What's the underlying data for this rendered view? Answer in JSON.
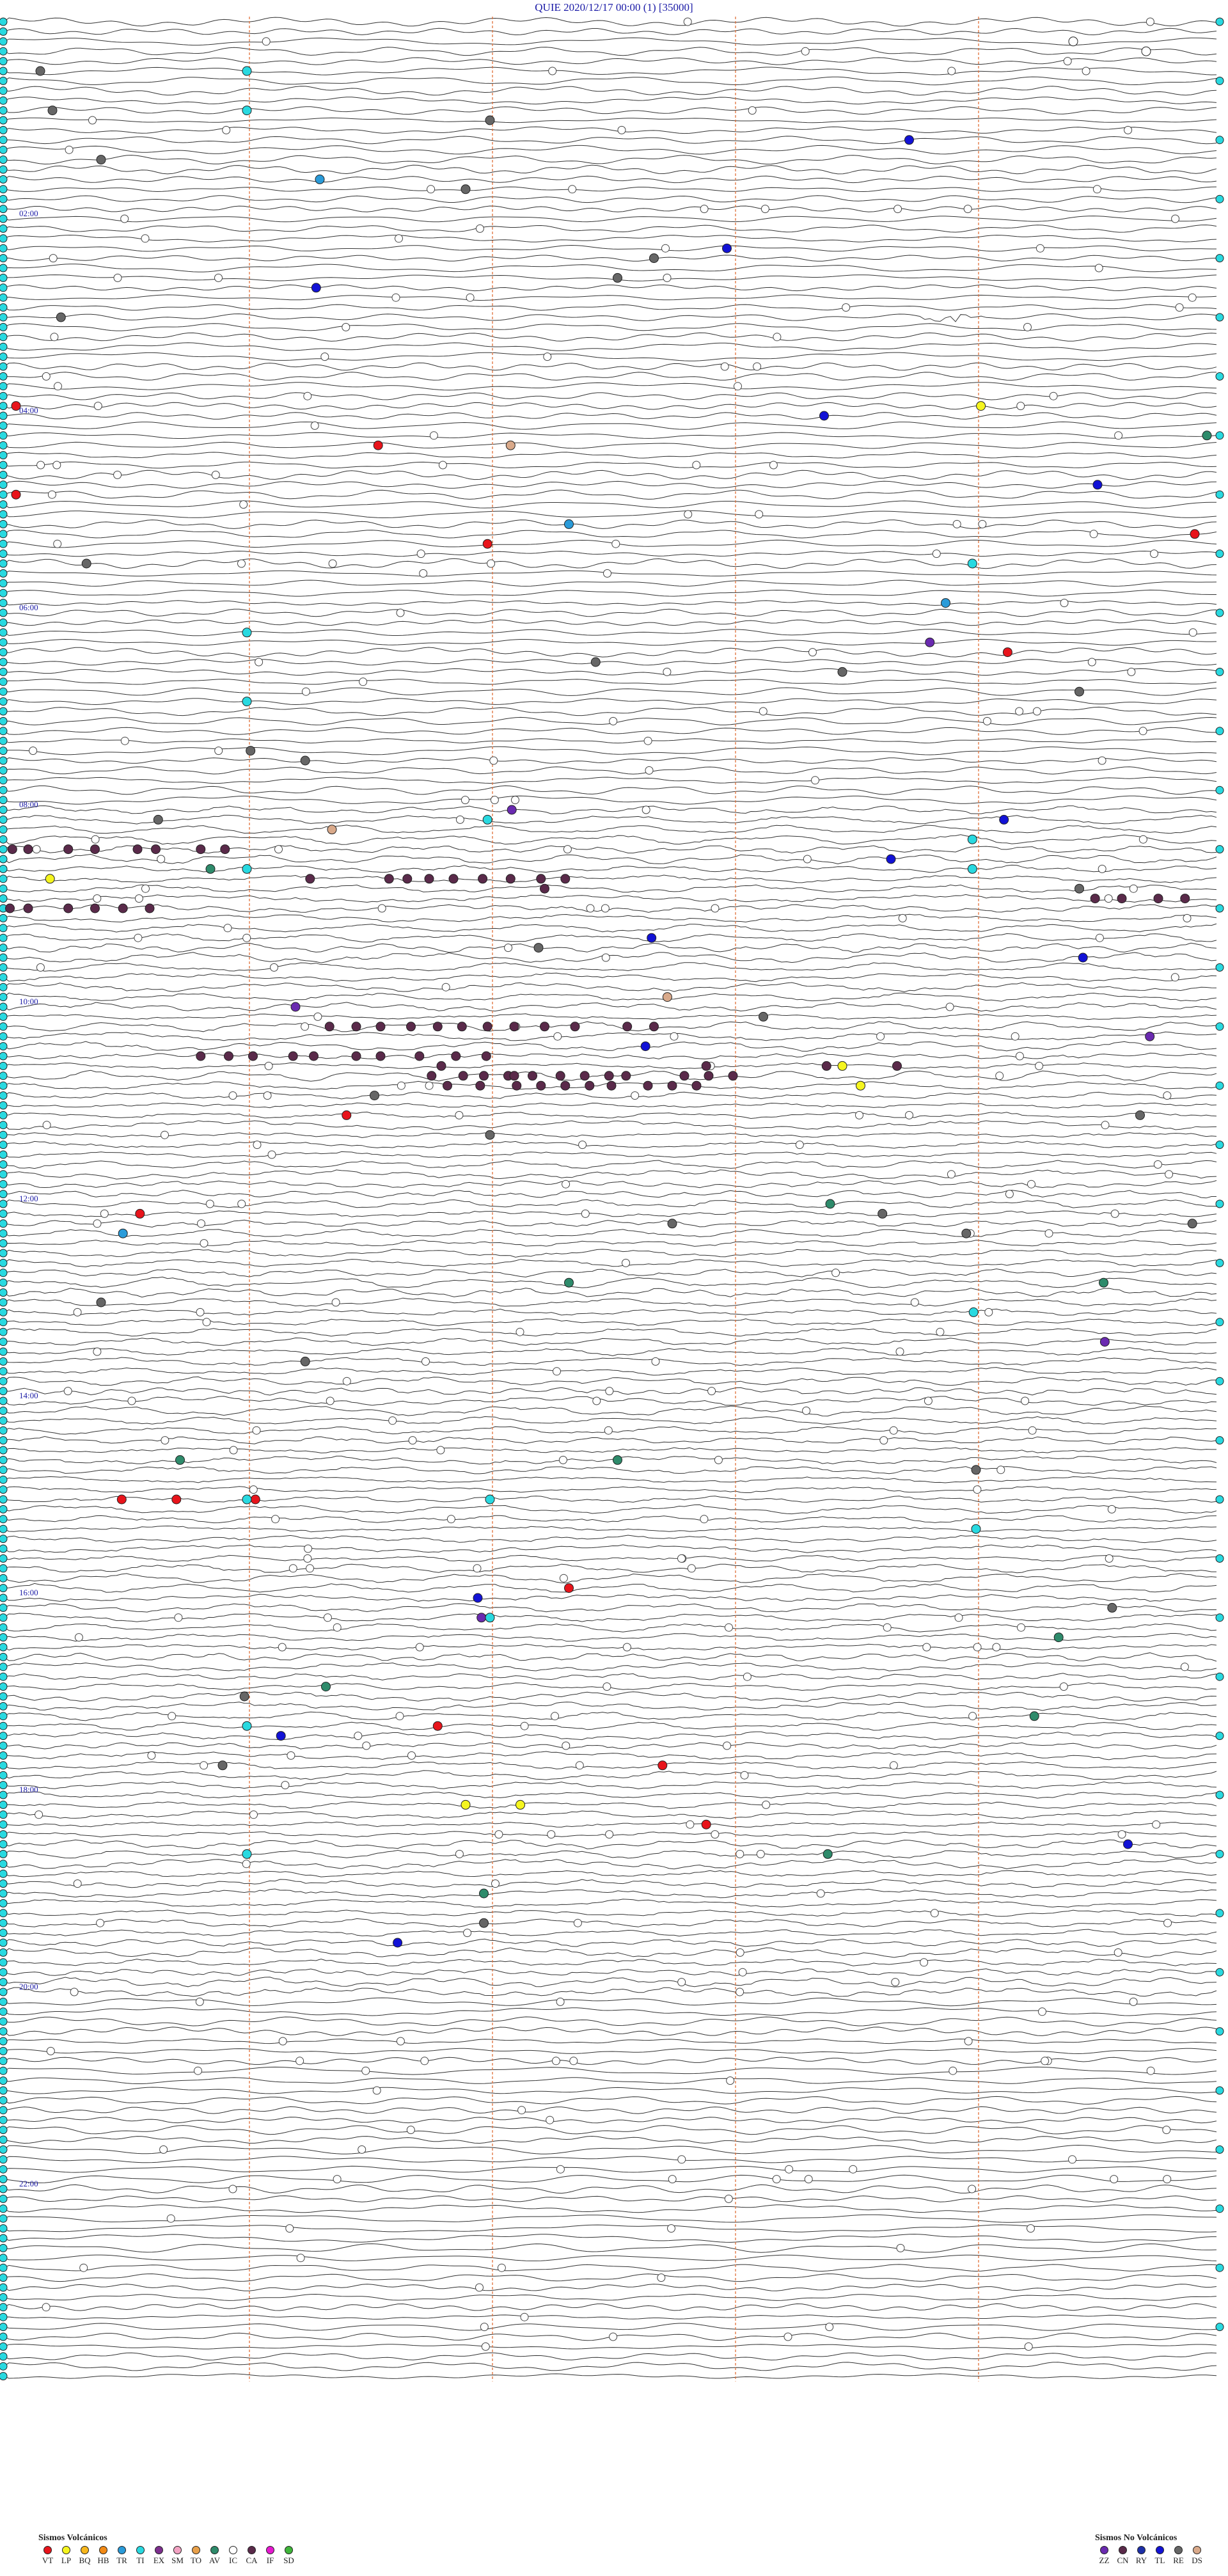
{
  "chart_data": {
    "type": "scatter",
    "title": "QUIE    2020/12/17 00:00    (1)   [35000]",
    "hour_labels": [
      "02:00",
      "04:00",
      "06:00",
      "08:00",
      "10:00",
      "12:00",
      "14:00",
      "16:00",
      "18:00",
      "20:00",
      "22:00"
    ],
    "legend_volcanic": {
      "title": "Sismos Volcánicos",
      "items": [
        {
          "code": "VT",
          "color": "#e8141b"
        },
        {
          "code": "LP",
          "color": "#f5f51f"
        },
        {
          "code": "BQ",
          "color": "#f7b71d"
        },
        {
          "code": "HB",
          "color": "#f28a16"
        },
        {
          "code": "TR",
          "color": "#2a9bd9"
        },
        {
          "code": "TI",
          "color": "#29d9e0"
        },
        {
          "code": "EX",
          "color": "#7d2f8e"
        },
        {
          "code": "SM",
          "color": "#f2a2c2"
        },
        {
          "code": "TO",
          "color": "#e8a04a"
        },
        {
          "code": "AV",
          "color": "#2e8b6b"
        },
        {
          "code": "IC",
          "color": "#ffffff"
        },
        {
          "code": "CA",
          "color": "#5a2a4a"
        },
        {
          "code": "IF",
          "color": "#e619d0"
        },
        {
          "code": "SD",
          "color": "#3fb53a"
        }
      ]
    },
    "legend_non_volcanic": {
      "title": "Sismos No Volcánicos",
      "items": [
        {
          "code": "ZZ",
          "color": "#6a2ab0"
        },
        {
          "code": "CN",
          "color": "#5a2a4a"
        },
        {
          "code": "RY",
          "color": "#1d2fa8"
        },
        {
          "code": "TL",
          "color": "#1212d6"
        },
        {
          "code": "RE",
          "color": "#666666"
        },
        {
          "code": "DS",
          "color": "#d9a98a"
        }
      ]
    },
    "events": [
      {
        "type": "IC",
        "x": 0.88,
        "line": 2
      },
      {
        "type": "IC",
        "x": 0.94,
        "line": 3
      },
      {
        "type": "RE",
        "x": 0.03,
        "line": 5
      },
      {
        "type": "TI",
        "x": 0.2,
        "line": 5
      },
      {
        "type": "RE",
        "x": 0.04,
        "line": 9
      },
      {
        "type": "TI",
        "x": 0.2,
        "line": 9
      },
      {
        "type": "RE",
        "x": 0.4,
        "line": 10
      },
      {
        "type": "TL",
        "x": 0.745,
        "line": 12
      },
      {
        "type": "RE",
        "x": 0.08,
        "line": 14
      },
      {
        "type": "TR",
        "x": 0.26,
        "line": 16
      },
      {
        "type": "RE",
        "x": 0.38,
        "line": 17
      },
      {
        "type": "TL",
        "x": 0.595,
        "line": 23
      },
      {
        "type": "RE",
        "x": 0.535,
        "line": 24
      },
      {
        "type": "RE",
        "x": 0.505,
        "line": 26
      },
      {
        "type": "TL",
        "x": 0.257,
        "line": 27
      },
      {
        "type": "RE",
        "x": 0.047,
        "line": 30
      },
      {
        "type": "VT",
        "x": 0.01,
        "line": 39
      },
      {
        "type": "LP",
        "x": 0.804,
        "line": 39
      },
      {
        "type": "TL",
        "x": 0.675,
        "line": 40
      },
      {
        "type": "AV",
        "x": 0.99,
        "line": 42
      },
      {
        "type": "VT",
        "x": 0.308,
        "line": 43
      },
      {
        "type": "DS",
        "x": 0.417,
        "line": 43
      },
      {
        "type": "TL",
        "x": 0.9,
        "line": 47
      },
      {
        "type": "VT",
        "x": 0.01,
        "line": 48
      },
      {
        "type": "TR",
        "x": 0.465,
        "line": 51
      },
      {
        "type": "VT",
        "x": 0.98,
        "line": 52
      },
      {
        "type": "VT",
        "x": 0.398,
        "line": 53
      },
      {
        "type": "TI",
        "x": 0.797,
        "line": 55
      },
      {
        "type": "RE",
        "x": 0.068,
        "line": 55
      },
      {
        "type": "TR",
        "x": 0.775,
        "line": 59
      },
      {
        "type": "ZZ",
        "x": 0.762,
        "line": 63
      },
      {
        "type": "VT",
        "x": 0.826,
        "line": 64
      },
      {
        "type": "TI",
        "x": 0.2,
        "line": 62
      },
      {
        "type": "RE",
        "x": 0.487,
        "line": 65
      },
      {
        "type": "RE",
        "x": 0.69,
        "line": 66
      },
      {
        "type": "RE",
        "x": 0.885,
        "line": 68
      },
      {
        "type": "TI",
        "x": 0.2,
        "line": 69
      },
      {
        "type": "RE",
        "x": 0.203,
        "line": 74
      },
      {
        "type": "RE",
        "x": 0.248,
        "line": 75
      },
      {
        "type": "ZZ",
        "x": 0.418,
        "line": 80
      },
      {
        "type": "TL",
        "x": 0.823,
        "line": 81
      },
      {
        "type": "RE",
        "x": 0.127,
        "line": 81
      },
      {
        "type": "TI",
        "x": 0.398,
        "line": 81
      },
      {
        "type": "DS",
        "x": 0.27,
        "line": 82
      },
      {
        "type": "TI",
        "x": 0.797,
        "line": 83
      },
      {
        "type": "CA",
        "x": 0.007,
        "line": 84
      },
      {
        "type": "CA",
        "x": 0.02,
        "line": 84
      },
      {
        "type": "CA",
        "x": 0.053,
        "line": 84
      },
      {
        "type": "CA",
        "x": 0.075,
        "line": 84
      },
      {
        "type": "CA",
        "x": 0.11,
        "line": 84
      },
      {
        "type": "CA",
        "x": 0.125,
        "line": 84
      },
      {
        "type": "CA",
        "x": 0.162,
        "line": 84
      },
      {
        "type": "CA",
        "x": 0.182,
        "line": 84
      },
      {
        "type": "TL",
        "x": 0.73,
        "line": 85
      },
      {
        "type": "LP",
        "x": 0.038,
        "line": 87
      },
      {
        "type": "AV",
        "x": 0.17,
        "line": 86
      },
      {
        "type": "TI",
        "x": 0.2,
        "line": 86
      },
      {
        "type": "TI",
        "x": 0.797,
        "line": 86
      },
      {
        "type": "CA",
        "x": 0.252,
        "line": 87
      },
      {
        "type": "CA",
        "x": 0.317,
        "line": 87
      },
      {
        "type": "CA",
        "x": 0.332,
        "line": 87
      },
      {
        "type": "CA",
        "x": 0.35,
        "line": 87
      },
      {
        "type": "CA",
        "x": 0.37,
        "line": 87
      },
      {
        "type": "CA",
        "x": 0.394,
        "line": 87
      },
      {
        "type": "CA",
        "x": 0.417,
        "line": 87
      },
      {
        "type": "CA",
        "x": 0.442,
        "line": 87
      },
      {
        "type": "CA",
        "x": 0.462,
        "line": 87
      },
      {
        "type": "CA",
        "x": 0.445,
        "line": 88
      },
      {
        "type": "RE",
        "x": 0.885,
        "line": 88
      },
      {
        "type": "CA",
        "x": 0.005,
        "line": 90
      },
      {
        "type": "CA",
        "x": 0.02,
        "line": 90
      },
      {
        "type": "CA",
        "x": 0.053,
        "line": 90
      },
      {
        "type": "CA",
        "x": 0.075,
        "line": 90
      },
      {
        "type": "CA",
        "x": 0.098,
        "line": 90
      },
      {
        "type": "CA",
        "x": 0.12,
        "line": 90
      },
      {
        "type": "CA",
        "x": 0.898,
        "line": 89
      },
      {
        "type": "CA",
        "x": 0.92,
        "line": 89
      },
      {
        "type": "CA",
        "x": 0.95,
        "line": 89
      },
      {
        "type": "CA",
        "x": 0.972,
        "line": 89
      },
      {
        "type": "TL",
        "x": 0.533,
        "line": 93
      },
      {
        "type": "RE",
        "x": 0.44,
        "line": 94
      },
      {
        "type": "TL",
        "x": 0.888,
        "line": 95
      },
      {
        "type": "DS",
        "x": 0.546,
        "line": 99
      },
      {
        "type": "ZZ",
        "x": 0.24,
        "line": 100
      },
      {
        "type": "RE",
        "x": 0.625,
        "line": 101
      },
      {
        "type": "CA",
        "x": 0.268,
        "line": 102
      },
      {
        "type": "CA",
        "x": 0.29,
        "line": 102
      },
      {
        "type": "CA",
        "x": 0.31,
        "line": 102
      },
      {
        "type": "CA",
        "x": 0.335,
        "line": 102
      },
      {
        "type": "CA",
        "x": 0.357,
        "line": 102
      },
      {
        "type": "CA",
        "x": 0.377,
        "line": 102
      },
      {
        "type": "CA",
        "x": 0.398,
        "line": 102
      },
      {
        "type": "CA",
        "x": 0.42,
        "line": 102
      },
      {
        "type": "CA",
        "x": 0.445,
        "line": 102
      },
      {
        "type": "CA",
        "x": 0.47,
        "line": 102
      },
      {
        "type": "CA",
        "x": 0.513,
        "line": 102
      },
      {
        "type": "CA",
        "x": 0.535,
        "line": 102
      },
      {
        "type": "ZZ",
        "x": 0.943,
        "line": 103
      },
      {
        "type": "TL",
        "x": 0.528,
        "line": 104
      },
      {
        "type": "CA",
        "x": 0.162,
        "line": 105
      },
      {
        "type": "CA",
        "x": 0.185,
        "line": 105
      },
      {
        "type": "CA",
        "x": 0.205,
        "line": 105
      },
      {
        "type": "CA",
        "x": 0.238,
        "line": 105
      },
      {
        "type": "CA",
        "x": 0.255,
        "line": 105
      },
      {
        "type": "CA",
        "x": 0.29,
        "line": 105
      },
      {
        "type": "CA",
        "x": 0.31,
        "line": 105
      },
      {
        "type": "CA",
        "x": 0.342,
        "line": 105
      },
      {
        "type": "CA",
        "x": 0.372,
        "line": 105
      },
      {
        "type": "CA",
        "x": 0.397,
        "line": 105
      },
      {
        "type": "CA",
        "x": 0.36,
        "line": 106
      },
      {
        "type": "CA",
        "x": 0.378,
        "line": 107
      },
      {
        "type": "CA",
        "x": 0.395,
        "line": 107
      },
      {
        "type": "CA",
        "x": 0.415,
        "line": 107
      },
      {
        "type": "CA",
        "x": 0.435,
        "line": 107
      },
      {
        "type": "CA",
        "x": 0.458,
        "line": 107
      },
      {
        "type": "CA",
        "x": 0.478,
        "line": 107
      },
      {
        "type": "CA",
        "x": 0.498,
        "line": 107
      },
      {
        "type": "CA",
        "x": 0.512,
        "line": 107
      },
      {
        "type": "CA",
        "x": 0.56,
        "line": 107
      },
      {
        "type": "CA",
        "x": 0.58,
        "line": 107
      },
      {
        "type": "CA",
        "x": 0.6,
        "line": 107
      },
      {
        "type": "CA",
        "x": 0.578,
        "line": 106
      },
      {
        "type": "CA",
        "x": 0.352,
        "line": 107
      },
      {
        "type": "CA",
        "x": 0.42,
        "line": 107
      },
      {
        "type": "CA",
        "x": 0.735,
        "line": 106
      },
      {
        "type": "CA",
        "x": 0.677,
        "line": 106
      },
      {
        "type": "CA",
        "x": 0.365,
        "line": 108
      },
      {
        "type": "CA",
        "x": 0.392,
        "line": 108
      },
      {
        "type": "CA",
        "x": 0.422,
        "line": 108
      },
      {
        "type": "CA",
        "x": 0.442,
        "line": 108
      },
      {
        "type": "CA",
        "x": 0.462,
        "line": 108
      },
      {
        "type": "CA",
        "x": 0.482,
        "line": 108
      },
      {
        "type": "CA",
        "x": 0.5,
        "line": 108
      },
      {
        "type": "CA",
        "x": 0.53,
        "line": 108
      },
      {
        "type": "CA",
        "x": 0.55,
        "line": 108
      },
      {
        "type": "CA",
        "x": 0.57,
        "line": 108
      },
      {
        "type": "LP",
        "x": 0.69,
        "line": 106
      },
      {
        "type": "LP",
        "x": 0.705,
        "line": 108
      },
      {
        "type": "VT",
        "x": 0.282,
        "line": 111
      },
      {
        "type": "RE",
        "x": 0.305,
        "line": 109
      },
      {
        "type": "RE",
        "x": 0.935,
        "line": 111
      },
      {
        "type": "RE",
        "x": 0.4,
        "line": 113
      },
      {
        "type": "VT",
        "x": 0.112,
        "line": 121
      },
      {
        "type": "AV",
        "x": 0.68,
        "line": 120
      },
      {
        "type": "RE",
        "x": 0.723,
        "line": 121
      },
      {
        "type": "RE",
        "x": 0.55,
        "line": 122
      },
      {
        "type": "RE",
        "x": 0.792,
        "line": 123
      },
      {
        "type": "RE",
        "x": 0.978,
        "line": 122
      },
      {
        "type": "TR",
        "x": 0.098,
        "line": 123
      },
      {
        "type": "AV",
        "x": 0.465,
        "line": 128
      },
      {
        "type": "AV",
        "x": 0.905,
        "line": 128
      },
      {
        "type": "RE",
        "x": 0.08,
        "line": 130
      },
      {
        "type": "TI",
        "x": 0.798,
        "line": 131
      },
      {
        "type": "ZZ",
        "x": 0.906,
        "line": 134
      },
      {
        "type": "RE",
        "x": 0.248,
        "line": 136
      },
      {
        "type": "AV",
        "x": 0.145,
        "line": 146
      },
      {
        "type": "AV",
        "x": 0.505,
        "line": 146
      },
      {
        "type": "RE",
        "x": 0.8,
        "line": 147
      },
      {
        "type": "VT",
        "x": 0.097,
        "line": 150
      },
      {
        "type": "VT",
        "x": 0.142,
        "line": 150
      },
      {
        "type": "VT",
        "x": 0.207,
        "line": 150
      },
      {
        "type": "TI",
        "x": 0.2,
        "line": 150
      },
      {
        "type": "TI",
        "x": 0.4,
        "line": 150
      },
      {
        "type": "TI",
        "x": 0.8,
        "line": 153
      },
      {
        "type": "VT",
        "x": 0.465,
        "line": 159
      },
      {
        "type": "TL",
        "x": 0.39,
        "line": 160
      },
      {
        "type": "RE",
        "x": 0.912,
        "line": 161
      },
      {
        "type": "ZZ",
        "x": 0.393,
        "line": 162
      },
      {
        "type": "TI",
        "x": 0.4,
        "line": 162
      },
      {
        "type": "AV",
        "x": 0.868,
        "line": 164
      },
      {
        "type": "AV",
        "x": 0.265,
        "line": 169
      },
      {
        "type": "RE",
        "x": 0.198,
        "line": 170
      },
      {
        "type": "AV",
        "x": 0.848,
        "line": 172
      },
      {
        "type": "TI",
        "x": 0.2,
        "line": 173
      },
      {
        "type": "TL",
        "x": 0.228,
        "line": 174
      },
      {
        "type": "VT",
        "x": 0.357,
        "line": 173
      },
      {
        "type": "RE",
        "x": 0.18,
        "line": 177
      },
      {
        "type": "VT",
        "x": 0.542,
        "line": 177
      },
      {
        "type": "LP",
        "x": 0.38,
        "line": 181
      },
      {
        "type": "LP",
        "x": 0.425,
        "line": 181
      },
      {
        "type": "VT",
        "x": 0.578,
        "line": 183
      },
      {
        "type": "AV",
        "x": 0.678,
        "line": 186
      },
      {
        "type": "TL",
        "x": 0.925,
        "line": 185
      },
      {
        "type": "TI",
        "x": 0.2,
        "line": 186
      },
      {
        "type": "AV",
        "x": 0.395,
        "line": 190
      },
      {
        "type": "RE",
        "x": 0.395,
        "line": 193
      },
      {
        "type": "TL",
        "x": 0.324,
        "line": 195
      }
    ]
  }
}
